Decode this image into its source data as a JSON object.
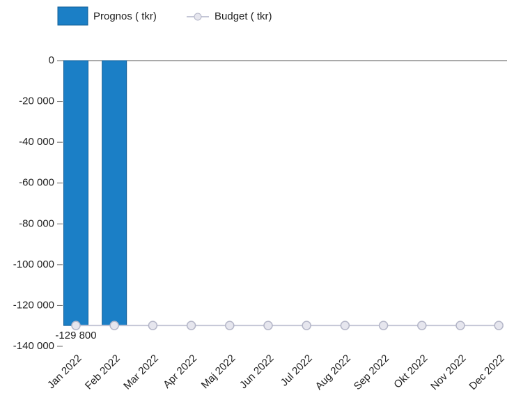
{
  "chart_data": {
    "type": "bar",
    "categories": [
      "Jan 2022",
      "Feb 2022",
      "Mar 2022",
      "Apr 2022",
      "Maj 2022",
      "Jun 2022",
      "Jul 2022",
      "Aug 2022",
      "Sep 2022",
      "Okt 2022",
      "Nov 2022",
      "Dec 2022"
    ],
    "series": [
      {
        "name": "Prognos ( tkr)",
        "type": "bar",
        "color": "#1b7fc6",
        "values": [
          -129800,
          -129800,
          null,
          null,
          null,
          null,
          null,
          null,
          null,
          null,
          null,
          null
        ],
        "value_labels": [
          "-129 800",
          null,
          null,
          null,
          null,
          null,
          null,
          null,
          null,
          null,
          null,
          null
        ]
      },
      {
        "name": "Budget ( tkr)",
        "type": "line",
        "color": "#c4c6d6",
        "values": [
          -129800,
          -129800,
          -129800,
          -129800,
          -129800,
          -129800,
          -129800,
          -129800,
          -129800,
          -129800,
          -129800,
          -129800
        ]
      }
    ],
    "ylim": [
      -140000,
      0
    ],
    "yticks": [
      {
        "value": 0,
        "label": "0"
      },
      {
        "value": -20000,
        "label": "-20 000"
      },
      {
        "value": -40000,
        "label": "-40 000"
      },
      {
        "value": -60000,
        "label": "-60 000"
      },
      {
        "value": -80000,
        "label": "-80 000"
      },
      {
        "value": -100000,
        "label": "-100 000"
      },
      {
        "value": -120000,
        "label": "-120 000"
      },
      {
        "value": -140000,
        "label": "-140 000"
      }
    ]
  }
}
